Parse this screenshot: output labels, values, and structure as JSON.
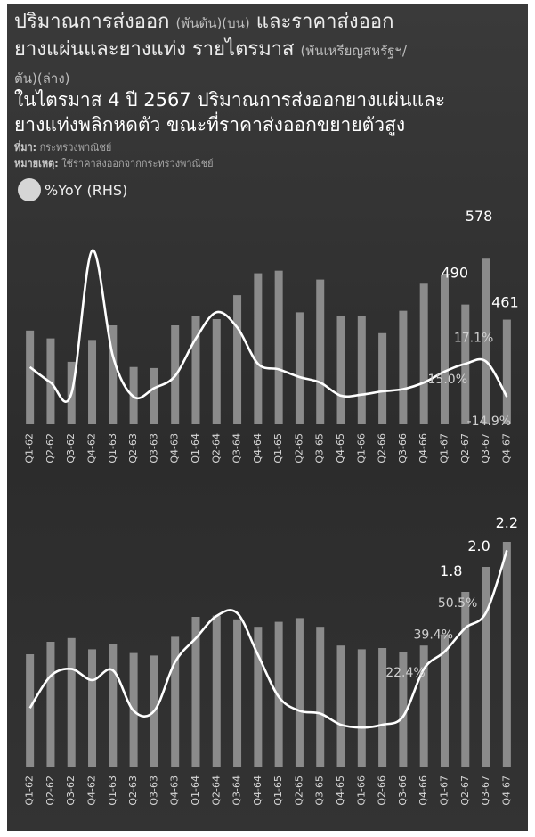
{
  "title": {
    "line1_main": "ปริมาณการส่งออก",
    "line1_unit": "(พันตัน)(บน)",
    "line1_rest": "และราคาส่งออก",
    "line2_main": "ยางแผ่นและยางแท่ง รายไตรมาส",
    "line2_unit": "(พันเหรียญสหรัฐฯ/",
    "line3_unit": "ตัน)(ล่าง)"
  },
  "subtitle": {
    "line1": "ในไตรมาส 4 ปี 2567 ปริมาณการส่งออกยางแผ่นและ",
    "line2": "ยางแท่งพลิกหดตัว ขณะที่ราคาส่งออกขยายตัวสูง"
  },
  "source": {
    "label": "ที่มา:",
    "text": "กระทรวงพาณิชย์"
  },
  "remark": {
    "label": "หมายเหตุ:",
    "text": "ใช้ราคาส่งออกจากกระทรวงพาณิชย์"
  },
  "legend": {
    "label": "%YoY (RHS)"
  },
  "colors": {
    "bar": "#8b8b8b",
    "line": "#ffffff",
    "background": "#333333"
  },
  "chart_data": [
    {
      "type": "bar",
      "categories": [
        "Q1-62",
        "Q2-62",
        "Q3-62",
        "Q4-62",
        "Q1-63",
        "Q2-63",
        "Q3-63",
        "Q4-63",
        "Q1-64",
        "Q2-64",
        "Q3-64",
        "Q4-64",
        "Q1-65",
        "Q2-65",
        "Q3-65",
        "Q4-65",
        "Q1-66",
        "Q2-66",
        "Q3-66",
        "Q4-66",
        "Q1-67",
        "Q2-67",
        "Q3-67",
        "Q4-67"
      ],
      "values": [
        440,
        425,
        380,
        422,
        450,
        370,
        368,
        450,
        468,
        462,
        508,
        550,
        555,
        475,
        538,
        468,
        468,
        435,
        478,
        530,
        548,
        490,
        578,
        461
      ],
      "ylim": [
        260,
        640
      ],
      "series": [
        {
          "values": [
            12,
            -2,
            -12,
            118,
            22,
            -15,
            -7,
            4,
            38,
            62,
            48,
            15,
            10,
            3,
            -2,
            -14,
            -13,
            -10,
            -8,
            -2,
            8,
            15.0,
            17.1,
            -14.9
          ]
        }
      ],
      "y2lim": [
        -40,
        140
      ],
      "data_labels": {
        "Q2-67": "490",
        "Q3-67": "578",
        "Q4-67": "461"
      },
      "line_labels": {
        "Q2-67": "15.0%",
        "Q3-67": "17.1%",
        "Q4-67": "-14.9%"
      }
    },
    {
      "type": "bar",
      "categories": [
        "Q1-62",
        "Q2-62",
        "Q3-62",
        "Q4-62",
        "Q1-63",
        "Q2-63",
        "Q3-63",
        "Q4-63",
        "Q1-64",
        "Q2-64",
        "Q3-64",
        "Q4-64",
        "Q1-65",
        "Q2-65",
        "Q3-65",
        "Q4-65",
        "Q1-66",
        "Q2-66",
        "Q3-66",
        "Q4-66",
        "Q1-67",
        "Q2-67",
        "Q3-67",
        "Q4-67"
      ],
      "values": [
        1.3,
        1.4,
        1.43,
        1.34,
        1.38,
        1.31,
        1.29,
        1.44,
        1.6,
        1.61,
        1.58,
        1.52,
        1.56,
        1.59,
        1.52,
        1.37,
        1.34,
        1.35,
        1.32,
        1.37,
        1.46,
        1.8,
        2.0,
        2.2
      ],
      "ylim": [
        0.4,
        2.3
      ],
      "series": [
        {
          "values": [
            -18,
            5,
            10,
            2,
            9,
            -20,
            -20,
            15,
            32,
            48,
            50,
            20,
            -10,
            -20,
            -22,
            -30,
            -32,
            -30,
            -24,
            10,
            22.4,
            39.4,
            50.5,
            95
          ]
        }
      ],
      "y2lim": [
        -60,
        110
      ],
      "data_labels": {
        "Q2-67": "1.8",
        "Q3-67": "2.0",
        "Q4-67": "2.2"
      },
      "line_labels": {
        "Q1-67": "22.4%",
        "Q2-67": "39.4%",
        "Q3-67": "50.5%"
      }
    }
  ]
}
